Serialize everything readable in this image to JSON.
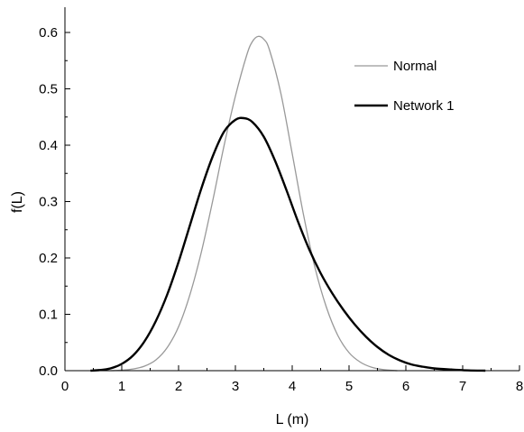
{
  "chart_data": {
    "type": "line",
    "xlabel": "L (m)",
    "ylabel": "f(L)",
    "xlim": [
      0,
      8
    ],
    "ylim": [
      0,
      0.6
    ],
    "x_ticks": [
      "0",
      "1",
      "2",
      "3",
      "4",
      "5",
      "6",
      "7",
      "8"
    ],
    "y_ticks": [
      "0.0",
      "0.1",
      "0.2",
      "0.3",
      "0.4",
      "0.5",
      "0.6"
    ],
    "grid": false,
    "legend_position": "top-right",
    "series": [
      {
        "name": "Normal",
        "color": "#999999",
        "x": [
          0.45,
          0.8,
          1.0,
          1.2,
          1.4,
          1.6,
          1.8,
          2.0,
          2.2,
          2.4,
          2.6,
          2.8,
          3.0,
          3.2,
          3.3,
          3.4,
          3.5,
          3.6,
          3.8,
          4.0,
          4.2,
          4.4,
          4.6,
          4.8,
          5.0,
          5.2,
          5.4,
          5.6,
          5.85
        ],
        "y": [
          0.0,
          0.0,
          0.001,
          0.003,
          0.008,
          0.019,
          0.041,
          0.078,
          0.135,
          0.21,
          0.301,
          0.399,
          0.487,
          0.56,
          0.584,
          0.593,
          0.588,
          0.569,
          0.492,
          0.385,
          0.276,
          0.183,
          0.113,
          0.063,
          0.032,
          0.015,
          0.006,
          0.002,
          0.0
        ]
      },
      {
        "name": "Network 1",
        "color": "#000000",
        "x": [
          0.45,
          0.6,
          0.8,
          1.0,
          1.2,
          1.4,
          1.6,
          1.8,
          2.0,
          2.2,
          2.4,
          2.6,
          2.8,
          3.0,
          3.15,
          3.3,
          3.5,
          3.7,
          3.9,
          4.1,
          4.3,
          4.5,
          4.7,
          4.9,
          5.1,
          5.3,
          5.5,
          5.7,
          5.9,
          6.1,
          6.3,
          6.5,
          6.8,
          7.1,
          7.4
        ],
        "y": [
          0.0,
          0.001,
          0.004,
          0.012,
          0.027,
          0.052,
          0.088,
          0.135,
          0.193,
          0.258,
          0.323,
          0.38,
          0.424,
          0.445,
          0.448,
          0.441,
          0.415,
          0.372,
          0.32,
          0.265,
          0.215,
          0.173,
          0.138,
          0.108,
          0.082,
          0.06,
          0.042,
          0.028,
          0.018,
          0.011,
          0.007,
          0.004,
          0.002,
          0.0005,
          0.0
        ]
      }
    ]
  }
}
